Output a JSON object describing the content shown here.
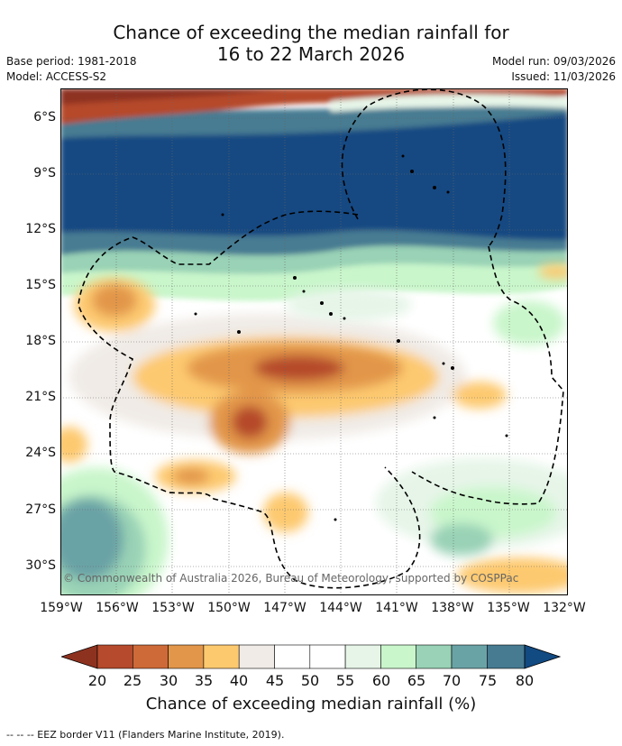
{
  "title_line1": "Chance of exceeding the median rainfall for",
  "title_line2": "16 to 22 March 2026",
  "base_period": "Base period: 1981-2018",
  "model": "Model: ACCESS-S2",
  "model_run": "Model run: 09/03/2026",
  "issued": "Issued: 11/03/2026",
  "copyright": "© Commonwealth of Australia 2026, Bureau of Meteorology, supported by COSPPac",
  "lat_labels": [
    "6°S",
    "9°S",
    "12°S",
    "15°S",
    "18°S",
    "21°S",
    "24°S",
    "27°S",
    "30°S"
  ],
  "lon_labels": [
    "159°W",
    "156°W",
    "153°W",
    "150°W",
    "147°W",
    "144°W",
    "141°W",
    "138°W",
    "135°W",
    "132°W"
  ],
  "colorbar": {
    "title": "Chance of exceeding median rainfall (%)",
    "ticks": [
      "20",
      "25",
      "30",
      "35",
      "40",
      "45",
      "50",
      "55",
      "60",
      "65",
      "70",
      "75",
      "80"
    ],
    "colors": [
      "#8e3220",
      "#b54a2c",
      "#cd6a38",
      "#e2964a",
      "#fdc96f",
      "#f0ebe6",
      "#ffffff",
      "#ffffff",
      "#e6f5e8",
      "#c9f6cb",
      "#99d2b6",
      "#6aa3a6",
      "#467b92",
      "#124a82"
    ]
  },
  "footer": "--  --  -- EEZ border V11 (Flanders Marine Institute, 2019)."
}
